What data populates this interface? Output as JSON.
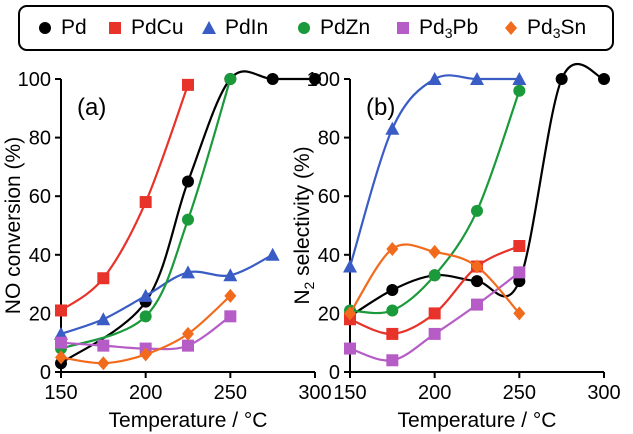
{
  "legend": [
    {
      "key": "pd",
      "base": "Pd",
      "sub": "",
      "tail": "",
      "marker": "circle",
      "color": "#000000"
    },
    {
      "key": "pdcu",
      "base": "PdCu",
      "sub": "",
      "tail": "",
      "marker": "square",
      "color": "#e8332a"
    },
    {
      "key": "pdin",
      "base": "PdIn",
      "sub": "",
      "tail": "",
      "marker": "triangle",
      "color": "#3a5cc5"
    },
    {
      "key": "pdzn",
      "base": "PdZn",
      "sub": "",
      "tail": "",
      "marker": "circle",
      "color": "#1a9a3a"
    },
    {
      "key": "pd3pb",
      "base": "Pd",
      "sub": "3",
      "tail": "Pb",
      "marker": "square",
      "color": "#b55cc6"
    },
    {
      "key": "pd3sn",
      "base": "Pd",
      "sub": "3",
      "tail": "Sn",
      "marker": "diamond",
      "color": "#f26b1d"
    }
  ],
  "chart_data": [
    {
      "type": "line",
      "panel_label": "(a)",
      "xlabel": "Temperature  / °C",
      "ylabel": "NO conversion (%)",
      "xlim": [
        150,
        300
      ],
      "ylim": [
        0,
        100
      ],
      "xticks": [
        150,
        200,
        250,
        300
      ],
      "yticks": [
        0,
        20,
        40,
        60,
        80,
        100
      ],
      "grid": false,
      "series": [
        {
          "name": "Pd",
          "x": [
            150,
            200,
            225,
            250,
            275,
            300
          ],
          "y": [
            3,
            24,
            65,
            100,
            100,
            100
          ]
        },
        {
          "name": "PdCu",
          "x": [
            150,
            175,
            200,
            225
          ],
          "y": [
            21,
            32,
            58,
            98
          ]
        },
        {
          "name": "PdIn",
          "x": [
            150,
            175,
            200,
            225,
            250,
            275
          ],
          "y": [
            13,
            18,
            26,
            34,
            33,
            40
          ]
        },
        {
          "name": "PdZn",
          "x": [
            150,
            200,
            225,
            250
          ],
          "y": [
            8,
            19,
            52,
            100
          ]
        },
        {
          "name": "Pd3Pb",
          "x": [
            150,
            175,
            200,
            225,
            250
          ],
          "y": [
            10,
            9,
            8,
            9,
            19
          ]
        },
        {
          "name": "Pd3Sn",
          "x": [
            150,
            175,
            200,
            225,
            250
          ],
          "y": [
            5,
            3,
            6,
            13,
            26
          ]
        }
      ]
    },
    {
      "type": "line",
      "panel_label": "(b)",
      "xlabel": "Temperature  / °C",
      "ylabel": "N2 selectivity (%)",
      "xlim": [
        150,
        300
      ],
      "ylim": [
        0,
        100
      ],
      "xticks": [
        150,
        200,
        250,
        300
      ],
      "yticks": [
        0,
        20,
        40,
        60,
        80,
        100
      ],
      "grid": false,
      "series": [
        {
          "name": "Pd",
          "x": [
            150,
            175,
            200,
            225,
            250,
            275,
            300
          ],
          "y": [
            19,
            28,
            33,
            31,
            31,
            100,
            100
          ]
        },
        {
          "name": "PdCu",
          "x": [
            150,
            175,
            200,
            225,
            250
          ],
          "y": [
            18,
            13,
            20,
            36,
            43
          ]
        },
        {
          "name": "PdIn",
          "x": [
            150,
            175,
            200,
            225,
            250
          ],
          "y": [
            36,
            83,
            100,
            100,
            100
          ]
        },
        {
          "name": "PdZn",
          "x": [
            150,
            175,
            200,
            225,
            250
          ],
          "y": [
            21,
            21,
            33,
            55,
            96
          ]
        },
        {
          "name": "Pd3Pb",
          "x": [
            150,
            175,
            200,
            225,
            250
          ],
          "y": [
            8,
            4,
            13,
            23,
            34
          ]
        },
        {
          "name": "Pd3Sn",
          "x": [
            150,
            175,
            200,
            225,
            250
          ],
          "y": [
            20,
            42,
            41,
            36,
            20
          ]
        }
      ]
    }
  ]
}
